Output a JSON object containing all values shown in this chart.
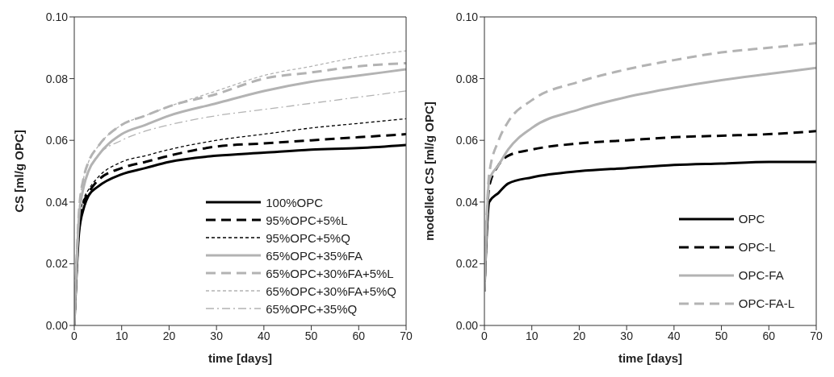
{
  "chart_data": [
    {
      "type": "line",
      "xlabel": "time [days]",
      "ylabel": "CS [ml/g OPC]",
      "xlim": [
        0,
        70
      ],
      "xticks": [
        0,
        10,
        20,
        30,
        40,
        50,
        60,
        70
      ],
      "ylim": [
        0,
        0.1
      ],
      "yticks": [
        {
          "value": 0,
          "label": "0.00"
        },
        {
          "value": 0.02,
          "label": "0.02"
        },
        {
          "value": 0.04,
          "label": "0.04"
        },
        {
          "value": 0.06,
          "label": "0.06"
        },
        {
          "value": 0.08,
          "label": "0.08"
        },
        {
          "value": 0.1,
          "label": "0.10"
        }
      ],
      "legend": "bottom right",
      "marker": "none",
      "x": [
        0,
        1,
        2,
        3,
        5,
        10,
        15,
        20,
        30,
        40,
        50,
        60,
        70
      ],
      "series": [
        {
          "name": "100%OPC",
          "color": "#000000",
          "line_style": "solid",
          "values": [
            0,
            0.03,
            0.038,
            0.042,
            0.045,
            0.049,
            0.051,
            0.053,
            0.055,
            0.056,
            0.057,
            0.0575,
            0.0585
          ]
        },
        {
          "name": "95%OPC+5%L",
          "color": "#000000",
          "line_style": "dashed",
          "values": [
            0,
            0.032,
            0.04,
            0.043,
            0.047,
            0.051,
            0.053,
            0.055,
            0.058,
            0.059,
            0.06,
            0.061,
            0.062
          ]
        },
        {
          "name": "95%OPC+5%Q",
          "color": "#000000",
          "line_style": "dotted",
          "values": [
            0,
            0.033,
            0.041,
            0.044,
            0.048,
            0.053,
            0.055,
            0.057,
            0.06,
            0.062,
            0.064,
            0.0655,
            0.067
          ]
        },
        {
          "name": "65%OPC+35%FA",
          "color": "#b3b3b3",
          "line_style": "solid",
          "values": [
            0,
            0.035,
            0.045,
            0.05,
            0.055,
            0.062,
            0.065,
            0.068,
            0.072,
            0.076,
            0.079,
            0.081,
            0.083
          ]
        },
        {
          "name": "65%OPC+30%FA+5%L",
          "color": "#b3b3b3",
          "line_style": "dashed",
          "values": [
            0,
            0.037,
            0.048,
            0.053,
            0.058,
            0.065,
            0.068,
            0.071,
            0.075,
            0.08,
            0.082,
            0.084,
            0.085
          ]
        },
        {
          "name": "65%OPC+30%FA+5%Q",
          "color": "#b3b3b3",
          "line_style": "dotted",
          "values": [
            0,
            0.037,
            0.048,
            0.053,
            0.058,
            0.065,
            0.068,
            0.071,
            0.076,
            0.081,
            0.084,
            0.087,
            0.089
          ]
        },
        {
          "name": "65%OPC+35%Q",
          "color": "#b3b3b3",
          "line_style": "dashdot",
          "values": [
            0,
            0.035,
            0.045,
            0.05,
            0.055,
            0.06,
            0.063,
            0.065,
            0.068,
            0.07,
            0.072,
            0.074,
            0.076
          ]
        }
      ]
    },
    {
      "type": "line",
      "xlabel": "time [days]",
      "ylabel": "modelled CS [ml/g OPC]",
      "xlim": [
        0,
        70
      ],
      "xticks": [
        0,
        10,
        20,
        30,
        40,
        50,
        60,
        70
      ],
      "ylim": [
        0,
        0.1
      ],
      "yticks": [
        {
          "value": 0,
          "label": "0.00"
        },
        {
          "value": 0.02,
          "label": "0.02"
        },
        {
          "value": 0.04,
          "label": "0.04"
        },
        {
          "value": 0.06,
          "label": "0.06"
        },
        {
          "value": 0.08,
          "label": "0.08"
        },
        {
          "value": 0.1,
          "label": "0.10"
        }
      ],
      "legend": "bottom right",
      "marker": "none",
      "x": [
        0,
        1,
        3,
        5,
        10,
        20,
        30,
        40,
        50,
        60,
        70
      ],
      "series": [
        {
          "name": "OPC",
          "color": "#000000",
          "line_style": "solid",
          "values": [
            0.011,
            0.04,
            0.043,
            0.046,
            0.048,
            0.05,
            0.051,
            0.052,
            0.0525,
            0.053,
            0.053
          ]
        },
        {
          "name": "OPC-L",
          "color": "#000000",
          "line_style": "dashed",
          "values": [
            0.011,
            0.045,
            0.052,
            0.055,
            0.057,
            0.059,
            0.06,
            0.061,
            0.0615,
            0.062,
            0.063
          ]
        },
        {
          "name": "OPC-FA",
          "color": "#b3b3b3",
          "line_style": "solid",
          "values": [
            0.011,
            0.047,
            0.052,
            0.057,
            0.064,
            0.07,
            0.074,
            0.077,
            0.0795,
            0.0815,
            0.0835
          ]
        },
        {
          "name": "OPC-FA-L",
          "color": "#b3b3b3",
          "line_style": "dashed",
          "values": [
            0.011,
            0.049,
            0.06,
            0.066,
            0.073,
            0.079,
            0.083,
            0.086,
            0.0885,
            0.09,
            0.0915
          ]
        }
      ]
    }
  ]
}
